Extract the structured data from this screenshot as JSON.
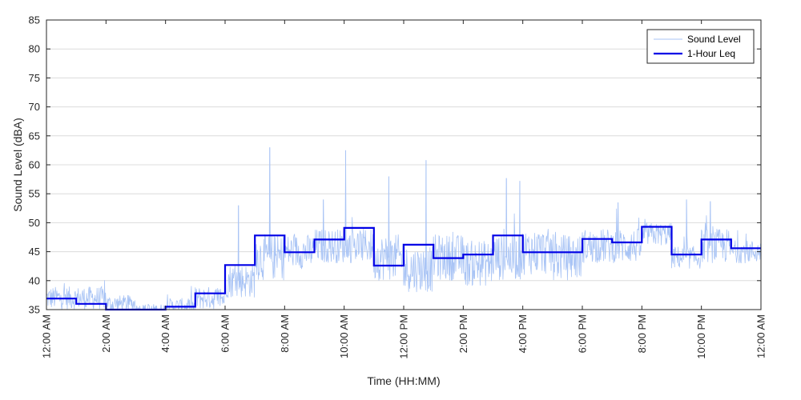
{
  "chart_data": {
    "type": "line",
    "xlabel": "Time (HH:MM)",
    "ylabel": "Sound Level (dBA)",
    "ylim": [
      35,
      85
    ],
    "xlim_hours": [
      0,
      24
    ],
    "y_ticks": [
      35,
      40,
      45,
      50,
      55,
      60,
      65,
      70,
      75,
      80,
      85
    ],
    "x_ticks": [
      {
        "hour": 0,
        "label": "12:00 AM"
      },
      {
        "hour": 2,
        "label": "2:00 AM"
      },
      {
        "hour": 4,
        "label": "4:00 AM"
      },
      {
        "hour": 6,
        "label": "6:00 AM"
      },
      {
        "hour": 8,
        "label": "8:00 AM"
      },
      {
        "hour": 10,
        "label": "10:00 AM"
      },
      {
        "hour": 12,
        "label": "12:00 PM"
      },
      {
        "hour": 14,
        "label": "2:00 PM"
      },
      {
        "hour": 16,
        "label": "4:00 PM"
      },
      {
        "hour": 18,
        "label": "6:00 PM"
      },
      {
        "hour": 20,
        "label": "8:00 PM"
      },
      {
        "hour": 22,
        "label": "10:00 PM"
      },
      {
        "hour": 24,
        "label": "12:00 AM"
      }
    ],
    "grid": "horizontal",
    "legend_position": "top-right",
    "series": [
      {
        "name": "Sound Level",
        "color": "#a9c4f5",
        "style": "thin",
        "note_values": "dense ~1-minute samples; approximate hourly mean and range shown",
        "hourly_mean": [
          37,
          37,
          36,
          35,
          35.5,
          37,
          40,
          44,
          45,
          46,
          46,
          44,
          42,
          44,
          43,
          44,
          45,
          44,
          46,
          46,
          48,
          44,
          46,
          45
        ],
        "hourly_spread": [
          2,
          2,
          1.5,
          1,
          1.5,
          2,
          3,
          4,
          3,
          3,
          3,
          4,
          4,
          4,
          4,
          4,
          4,
          4,
          3,
          3,
          2,
          2,
          3,
          2
        ],
        "peaks": [
          {
            "hour": 7.5,
            "value": 63
          },
          {
            "hour": 10.05,
            "value": 62.5
          },
          {
            "hour": 12.75,
            "value": 60.8
          },
          {
            "hour": 6.45,
            "value": 53
          },
          {
            "hour": 9.3,
            "value": 54
          },
          {
            "hour": 11.5,
            "value": 58
          },
          {
            "hour": 15.45,
            "value": 57.7
          },
          {
            "hour": 15.9,
            "value": 57.2
          },
          {
            "hour": 19.2,
            "value": 53.5
          },
          {
            "hour": 21.5,
            "value": 54
          },
          {
            "hour": 22.3,
            "value": 53.7
          }
        ]
      },
      {
        "name": "1-Hour Leq",
        "color": "#0000e6",
        "style": "step",
        "hours": [
          0,
          1,
          2,
          3,
          4,
          5,
          6,
          7,
          8,
          9,
          10,
          11,
          12,
          13,
          14,
          15,
          16,
          17,
          18,
          19,
          20,
          21,
          22,
          23
        ],
        "values": [
          36.9,
          36.0,
          34.5,
          34.5,
          35.5,
          37.8,
          42.7,
          47.8,
          44.9,
          47.1,
          49.1,
          42.6,
          46.2,
          43.9,
          44.5,
          47.8,
          44.9,
          44.9,
          47.2,
          46.6,
          49.3,
          44.5,
          47.1,
          45.6
        ]
      }
    ]
  }
}
